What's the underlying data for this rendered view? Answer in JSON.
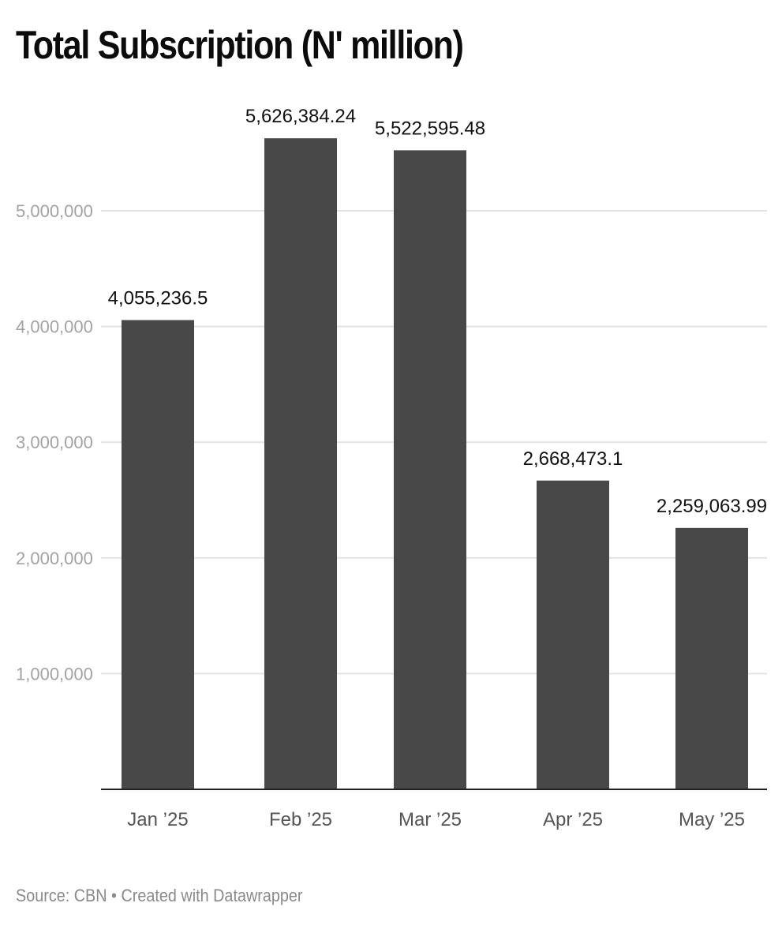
{
  "colors": {
    "bar": "#484848",
    "grid": "#e2e2e2",
    "baseline": "#222222"
  },
  "chart_data": {
    "type": "bar",
    "title": "Total Subscription (N' million)",
    "xlabel": "",
    "ylabel": "",
    "categories": [
      "Jan ’25",
      "Feb ’25",
      "Mar ’25",
      "Apr ’25",
      "May ’25"
    ],
    "values": [
      4055236.5,
      5626384.24,
      5522595.48,
      2668473.1,
      2259063.99
    ],
    "data_labels": [
      "4,055,236.5",
      "5,626,384.24",
      "5,522,595.48",
      "2,668,473.1",
      "2,259,063.99"
    ],
    "yticks": [
      1000000,
      2000000,
      3000000,
      4000000,
      5000000
    ],
    "ytick_labels": [
      "1,000,000",
      "2,000,000",
      "3,000,000",
      "4,000,000",
      "5,000,000"
    ],
    "ylim": [
      0,
      5700000
    ],
    "grid": true,
    "legend": "none"
  },
  "footer": {
    "source": "Source: CBN • Created with Datawrapper"
  }
}
